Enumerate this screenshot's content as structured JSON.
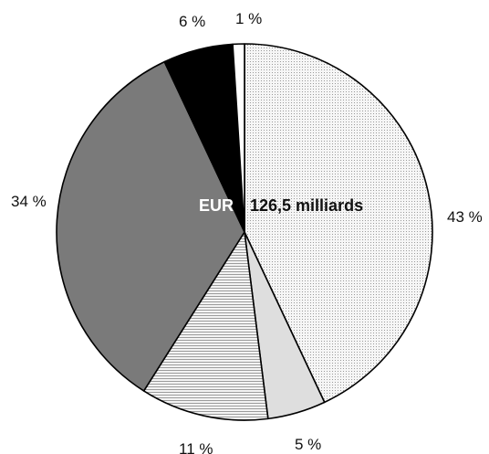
{
  "chart_data": {
    "type": "pie",
    "title": "",
    "center_label": {
      "prefix": "EUR",
      "value": "126,5 milliards"
    },
    "slices": [
      {
        "label": "43 %",
        "value": 43,
        "color": "#f1f1f1",
        "pattern": "dots"
      },
      {
        "label": "5 %",
        "value": 5,
        "color": "#dedede",
        "pattern": "solid"
      },
      {
        "label": "11 %",
        "value": 11,
        "color": "#e9e9e9",
        "pattern": "hlines"
      },
      {
        "label": "34 %",
        "value": 34,
        "color": "#7a7a7a",
        "pattern": "solid"
      },
      {
        "label": "6 %",
        "value": 6,
        "color": "#000000",
        "pattern": "solid"
      },
      {
        "label": "1 %",
        "value": 1,
        "color": "#ffffff",
        "pattern": "solid"
      }
    ]
  }
}
